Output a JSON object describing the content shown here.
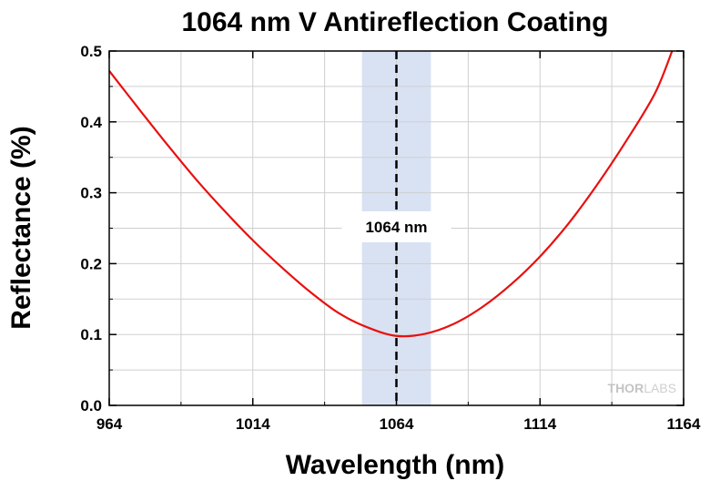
{
  "chart_data": {
    "type": "line",
    "title": "1064 nm V Antireflection Coating",
    "xlabel": "Wavelength (nm)",
    "ylabel": "Reflectance (%)",
    "xlim": [
      964,
      1164
    ],
    "ylim": [
      0,
      0.5
    ],
    "x_ticks": [
      "964",
      "1014",
      "1064",
      "1114",
      "1164"
    ],
    "y_ticks": [
      "0.0",
      "0.1",
      "0.2",
      "0.3",
      "0.4",
      "0.5"
    ],
    "grid": true,
    "highlight_band": {
      "x_start": 1052,
      "x_end": 1076,
      "color": "#d9e2f3"
    },
    "reference_line": {
      "x": 1064,
      "style": "dashed",
      "label": "1064 nm"
    },
    "series": [
      {
        "color": "#e8100f",
        "x": [
          964,
          974,
          984,
          994,
          1004,
          1014,
          1024,
          1034,
          1044,
          1054,
          1064,
          1074,
          1084,
          1094,
          1104,
          1114,
          1124,
          1134,
          1144,
          1154,
          1160
        ],
        "y": [
          0.472,
          0.42,
          0.369,
          0.32,
          0.275,
          0.233,
          0.195,
          0.16,
          0.13,
          0.11,
          0.098,
          0.101,
          0.115,
          0.139,
          0.171,
          0.21,
          0.257,
          0.312,
          0.373,
          0.44,
          0.5
        ]
      }
    ],
    "watermark": {
      "bold": "THOR",
      "light": "LABS"
    }
  }
}
